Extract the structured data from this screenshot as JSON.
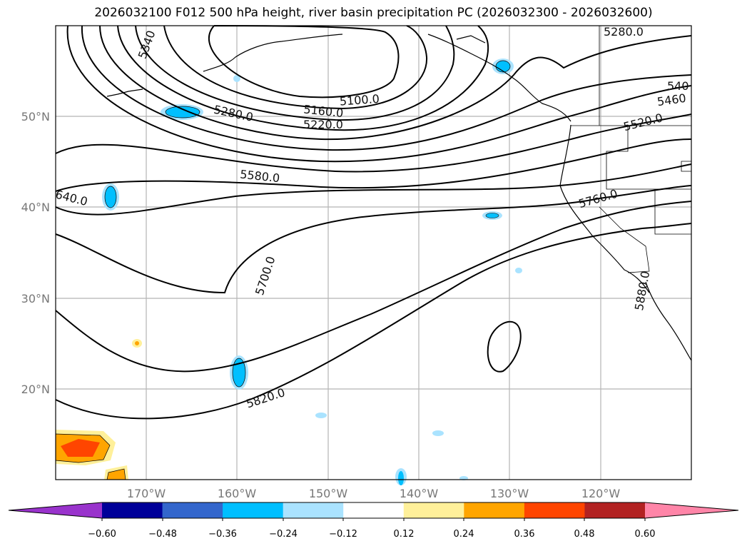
{
  "title": "2026032100 F012 500 hPa height, river basin precipitation PC (2026032300 - 2026032600)",
  "map": {
    "lat_labels": [
      "50°N",
      "40°N",
      "30°N",
      "20°N"
    ],
    "lon_labels": [
      "170°W",
      "160°W",
      "150°W",
      "140°W",
      "130°W",
      "120°W"
    ],
    "contour_labels": [
      "5340",
      "5280.0",
      "5160.0",
      "5220.0",
      "5100.0",
      "5280.0",
      "540",
      "5460",
      "5520.0",
      "5580.0",
      "5760.0",
      "640.0",
      "5700.0",
      "5880.0",
      "5820.0"
    ]
  },
  "colorbar": {
    "colors": [
      "#9933cc",
      "#000099",
      "#3366cc",
      "#00bfff",
      "#aae3ff",
      "#ffffff",
      "#fff09a",
      "#ffa500",
      "#ff4500",
      "#b22222",
      "#ff85a8",
      "#ff85a8"
    ],
    "tick_labels": [
      "−0.60",
      "−0.48",
      "−0.36",
      "−0.24",
      "−0.12",
      "0.12",
      "0.24",
      "0.36",
      "0.48",
      "0.60"
    ]
  }
}
